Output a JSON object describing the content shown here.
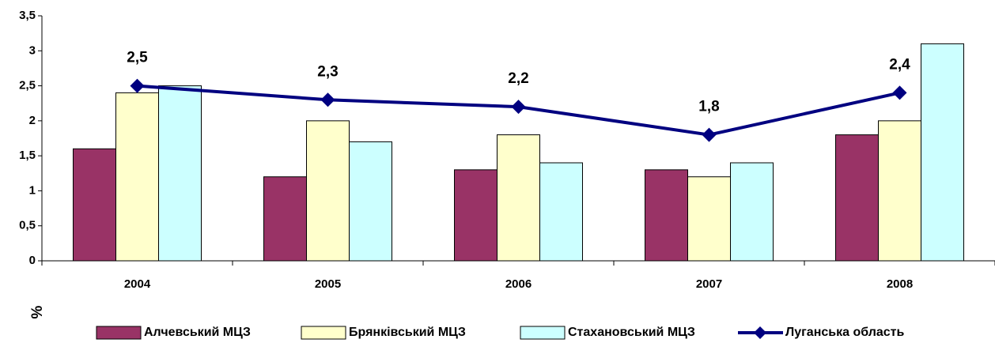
{
  "chart_data": {
    "type": "bar",
    "categories": [
      "2004",
      "2005",
      "2006",
      "2007",
      "2008"
    ],
    "y_label": "%",
    "ylim": [
      0,
      3.5
    ],
    "yticks": [
      0,
      {
        "value": 0.5,
        "label": "0,5"
      },
      1,
      {
        "value": 1.5,
        "label": "1,5"
      },
      2,
      {
        "value": 2.5,
        "label": "2,5"
      },
      3,
      {
        "value": 3.5,
        "label": "3,5"
      }
    ],
    "grid": false,
    "legend": "bottom",
    "series": [
      {
        "name": "Алчевський МЦЗ",
        "type": "bar",
        "color": "#993366",
        "values": [
          1.6,
          1.2,
          1.3,
          1.3,
          1.8
        ]
      },
      {
        "name": "Брянківський МЦЗ",
        "type": "bar",
        "color": "#FFFFCC",
        "values": [
          2.4,
          2.0,
          1.8,
          1.2,
          2.0
        ]
      },
      {
        "name": "Стахановський МЦЗ",
        "type": "bar",
        "color": "#CCFFFF",
        "values": [
          2.5,
          1.7,
          1.4,
          1.4,
          3.1
        ]
      },
      {
        "name": "Луганська область",
        "type": "line",
        "color": "#000080",
        "values": [
          2.5,
          2.3,
          2.2,
          1.8,
          2.4
        ],
        "value_labels": [
          "2,5",
          "2,3",
          "2,2",
          "1,8",
          "2,4"
        ]
      }
    ]
  }
}
